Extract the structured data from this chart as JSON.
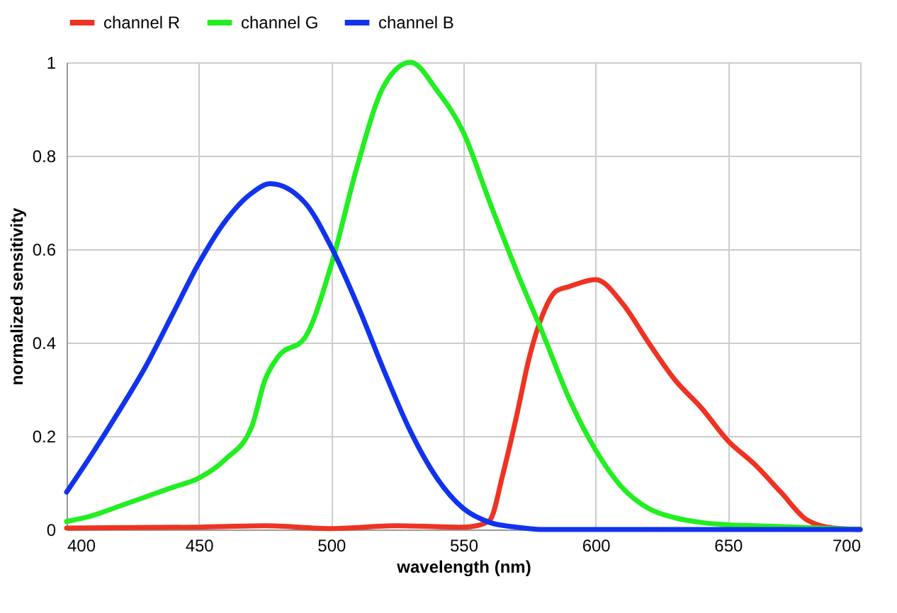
{
  "chart_data": {
    "type": "line",
    "xlabel": "wavelength (nm)",
    "ylabel": "normalized sensitivity",
    "xlim": [
      400,
      700
    ],
    "ylim": [
      0,
      1
    ],
    "xticks": [
      400,
      450,
      500,
      550,
      600,
      650,
      700
    ],
    "yticks": [
      0,
      0.2,
      0.4,
      0.6,
      0.8,
      1
    ],
    "grid": true,
    "legend": "top",
    "marker": "none",
    "line_style": "solid",
    "series": [
      {
        "name": "channel R",
        "color": "#ee3322",
        "x": [
          400,
          450,
          475,
          500,
          525,
          550,
          555,
          560,
          565,
          570,
          575,
          580,
          585,
          590,
          600,
          610,
          620,
          630,
          640,
          650,
          660,
          670,
          680,
          690,
          700
        ],
        "values": [
          0.003,
          0.005,
          0.008,
          0.002,
          0.008,
          0.005,
          0.008,
          0.02,
          0.12,
          0.24,
          0.37,
          0.46,
          0.51,
          0.52,
          0.535,
          0.485,
          0.4,
          0.32,
          0.26,
          0.19,
          0.14,
          0.08,
          0.02,
          0.003,
          0
        ]
      },
      {
        "name": "channel G",
        "color": "#22ee22",
        "x": [
          400,
          410,
          420,
          430,
          440,
          450,
          460,
          470,
          475,
          480,
          490,
          500,
          510,
          520,
          530,
          540,
          550,
          560,
          570,
          580,
          590,
          600,
          610,
          620,
          630,
          640,
          650,
          660,
          680,
          700
        ],
        "values": [
          0.017,
          0.03,
          0.05,
          0.07,
          0.09,
          0.11,
          0.15,
          0.22,
          0.32,
          0.37,
          0.41,
          0.565,
          0.78,
          0.95,
          1.0,
          0.94,
          0.85,
          0.7,
          0.555,
          0.42,
          0.28,
          0.17,
          0.09,
          0.045,
          0.025,
          0.015,
          0.01,
          0.008,
          0.004,
          0
        ]
      },
      {
        "name": "channel B",
        "color": "#1133ee",
        "x": [
          400,
          410,
          420,
          430,
          440,
          450,
          460,
          470,
          477,
          490,
          500,
          510,
          520,
          530,
          540,
          550,
          560,
          570,
          580,
          600,
          650,
          700
        ],
        "values": [
          0.08,
          0.165,
          0.255,
          0.35,
          0.46,
          0.57,
          0.66,
          0.72,
          0.74,
          0.7,
          0.605,
          0.48,
          0.34,
          0.21,
          0.11,
          0.045,
          0.015,
          0.005,
          0,
          0,
          0,
          0
        ]
      }
    ]
  }
}
